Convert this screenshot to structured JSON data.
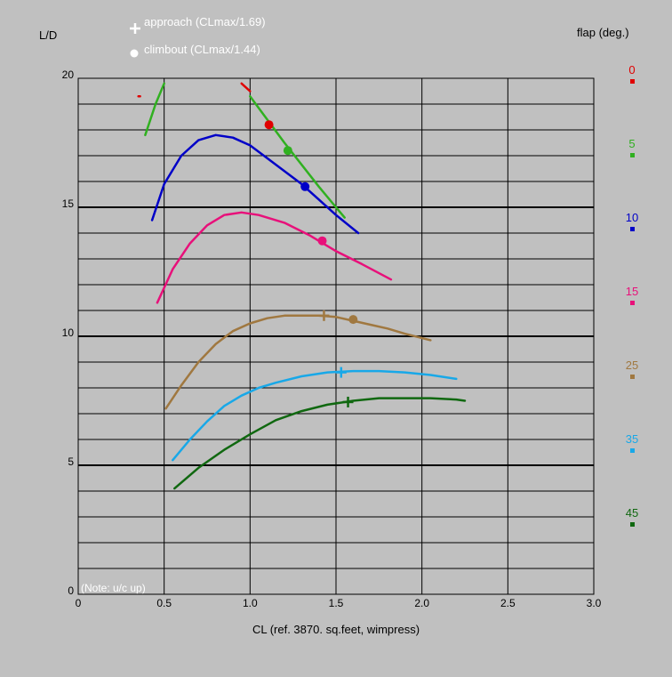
{
  "chart_data": {
    "type": "line",
    "xlabel": "CL (ref. 3870. sq.feet, wimpress)",
    "ylabel": "L/D",
    "xlim": [
      0,
      3.0
    ],
    "ylim": [
      0,
      20
    ],
    "x_ticks": [
      "0",
      "0.5",
      "1.0",
      "1.5",
      "2.0",
      "2.5",
      "3.0"
    ],
    "y_ticks": [
      "0",
      "5",
      "10",
      "15",
      "20"
    ],
    "grid": true,
    "legend_title": "flap (deg.)",
    "note": "(Note: u/c up)",
    "marker_legend": [
      {
        "symbol": "plus",
        "label": "approach (CLmax/1.69)"
      },
      {
        "symbol": "dot",
        "label": "climbout (CLmax/1.44)"
      }
    ],
    "series": [
      {
        "name": "0",
        "color": "#e00000",
        "x": [
          0.35,
          0.36,
          0.95,
          1.0
        ],
        "y": [
          19.3,
          19.3,
          19.8,
          19.5
        ],
        "segments": [
          [
            0,
            1
          ],
          [
            2,
            3
          ]
        ],
        "climbout": {
          "x": 1.11,
          "y": 18.2
        }
      },
      {
        "name": "5",
        "color": "#30b020",
        "x": [
          0.39,
          0.45,
          0.5,
          1.0,
          1.2,
          1.4,
          1.5,
          1.55
        ],
        "y": [
          17.8,
          19.0,
          19.8,
          19.3,
          17.5,
          15.8,
          15.0,
          14.6
        ],
        "segments": [
          [
            0,
            2
          ],
          [
            3,
            7
          ]
        ],
        "climbout": {
          "x": 1.22,
          "y": 17.2
        }
      },
      {
        "name": "10",
        "color": "#0000c8",
        "x": [
          0.43,
          0.5,
          0.6,
          0.7,
          0.8,
          0.9,
          1.0,
          1.1,
          1.2,
          1.3,
          1.4,
          1.5,
          1.63
        ],
        "y": [
          14.5,
          15.9,
          17.0,
          17.6,
          17.8,
          17.7,
          17.4,
          16.9,
          16.4,
          15.9,
          15.3,
          14.7,
          14.0
        ],
        "climbout": {
          "x": 1.32,
          "y": 15.8
        }
      },
      {
        "name": "15",
        "color": "#e8107a",
        "x": [
          0.46,
          0.55,
          0.65,
          0.75,
          0.85,
          0.95,
          1.05,
          1.2,
          1.35,
          1.5,
          1.65,
          1.82
        ],
        "y": [
          11.3,
          12.6,
          13.6,
          14.3,
          14.7,
          14.8,
          14.7,
          14.4,
          13.9,
          13.3,
          12.8,
          12.2
        ],
        "climbout": {
          "x": 1.42,
          "y": 13.7
        }
      },
      {
        "name": "25",
        "color": "#a07840",
        "x": [
          0.51,
          0.6,
          0.7,
          0.8,
          0.9,
          1.0,
          1.1,
          1.2,
          1.3,
          1.4,
          1.5,
          1.6,
          1.7,
          1.8,
          1.9,
          2.05
        ],
        "y": [
          7.2,
          8.1,
          9.0,
          9.7,
          10.2,
          10.5,
          10.7,
          10.8,
          10.8,
          10.8,
          10.75,
          10.6,
          10.45,
          10.3,
          10.1,
          9.85
        ],
        "approach": {
          "x": 1.43,
          "y": 10.8
        },
        "climbout": {
          "x": 1.6,
          "y": 10.65
        }
      },
      {
        "name": "35",
        "color": "#18a8e8",
        "x": [
          0.55,
          0.65,
          0.75,
          0.85,
          0.95,
          1.05,
          1.15,
          1.3,
          1.45,
          1.6,
          1.75,
          1.9,
          2.05,
          2.2
        ],
        "y": [
          5.2,
          6.0,
          6.7,
          7.3,
          7.7,
          8.0,
          8.2,
          8.45,
          8.6,
          8.65,
          8.65,
          8.6,
          8.5,
          8.35
        ],
        "approach": {
          "x": 1.53,
          "y": 8.6
        }
      },
      {
        "name": "45",
        "color": "#106810",
        "x": [
          0.56,
          0.7,
          0.85,
          1.0,
          1.15,
          1.3,
          1.45,
          1.6,
          1.75,
          1.9,
          2.05,
          2.2,
          2.25
        ],
        "y": [
          4.1,
          4.9,
          5.6,
          6.2,
          6.75,
          7.1,
          7.35,
          7.5,
          7.6,
          7.6,
          7.6,
          7.55,
          7.5
        ],
        "approach": {
          "x": 1.57,
          "y": 7.45
        }
      }
    ]
  }
}
